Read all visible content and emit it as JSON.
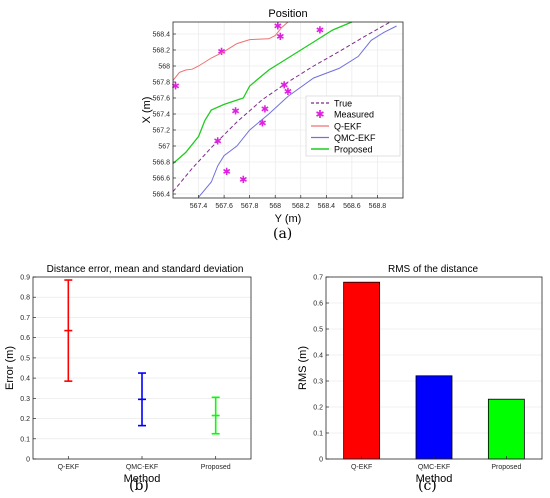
{
  "chart_data": [
    {
      "type": "line",
      "panel_label": "(a)",
      "title": "Position",
      "xlabel": "Y (m)",
      "ylabel": "X (m)",
      "xlim": [
        567.2,
        569.0
      ],
      "ylim": [
        566.35,
        568.55
      ],
      "xticks": [
        567.4,
        567.6,
        567.8,
        568,
        568.2,
        568.4,
        568.6,
        568.8
      ],
      "yticks": [
        566.4,
        566.6,
        566.8,
        567,
        567.2,
        567.4,
        567.6,
        567.8,
        568,
        568.2,
        568.4
      ],
      "legend_position": "lower-right",
      "series": [
        {
          "name": "True",
          "color": "#7b2c86",
          "style": "dashed",
          "x": [
            567.2,
            567.35,
            567.5,
            567.7,
            567.9,
            568.1,
            568.3,
            568.5,
            568.7,
            568.9
          ],
          "y": [
            566.43,
            566.72,
            566.98,
            567.3,
            567.58,
            567.8,
            568.0,
            568.18,
            568.37,
            568.55
          ]
        },
        {
          "name": "Measured",
          "color": "#e020e0",
          "style": "markers",
          "x": [
            567.22,
            567.55,
            567.58,
            567.62,
            567.69,
            567.75,
            567.9,
            567.92,
            568.02,
            568.04,
            568.07,
            568.1,
            568.35
          ],
          "y": [
            567.75,
            567.06,
            568.18,
            566.68,
            567.44,
            566.58,
            567.29,
            567.46,
            568.5,
            568.37,
            567.76,
            567.68,
            568.45
          ]
        },
        {
          "name": "Q-EKF",
          "color": "#f07070",
          "style": "solid",
          "x": [
            567.2,
            567.25,
            567.3,
            567.35,
            567.4,
            567.5,
            567.6,
            567.7,
            567.8,
            567.95,
            568.0,
            568.05,
            568.1
          ],
          "y": [
            567.82,
            567.92,
            567.95,
            567.96,
            568.0,
            568.1,
            568.18,
            568.28,
            568.33,
            568.34,
            568.38,
            568.48,
            568.57
          ]
        },
        {
          "name": "QMC-EKF",
          "color": "#7070e0",
          "style": "solid",
          "x": [
            567.4,
            567.5,
            567.55,
            567.6,
            567.7,
            567.8,
            567.95,
            568.1,
            568.3,
            568.5,
            568.65,
            568.75,
            568.85,
            568.95
          ],
          "y": [
            566.36,
            566.55,
            566.75,
            566.88,
            567.0,
            567.2,
            567.4,
            567.62,
            567.85,
            567.97,
            568.12,
            568.32,
            568.42,
            568.5
          ]
        },
        {
          "name": "Proposed",
          "color": "#20cc20",
          "style": "solid",
          "x": [
            567.2,
            567.3,
            567.4,
            567.45,
            567.5,
            567.6,
            567.75,
            567.8,
            567.95,
            568.1,
            568.3,
            568.45,
            568.6
          ],
          "y": [
            566.78,
            566.92,
            567.12,
            567.32,
            567.45,
            567.52,
            567.6,
            567.75,
            567.95,
            568.1,
            568.3,
            568.45,
            568.55
          ]
        }
      ]
    },
    {
      "type": "errorbar",
      "panel_label": "(b)",
      "title": "Distance error, mean and standard deviation",
      "xlabel": "Method",
      "ylabel": "Error (m)",
      "ylim": [
        0,
        0.9
      ],
      "yticks": [
        0,
        0.1,
        0.2,
        0.3,
        0.4,
        0.5,
        0.6,
        0.7,
        0.8,
        0.9
      ],
      "categories": [
        "Q-EKF",
        "QMC-EKF",
        "Proposed"
      ],
      "mean": [
        0.635,
        0.295,
        0.215
      ],
      "lower": [
        0.385,
        0.165,
        0.125
      ],
      "upper": [
        0.885,
        0.425,
        0.305
      ],
      "colors": [
        "#ff0000",
        "#0000ff",
        "#00ff00"
      ]
    },
    {
      "type": "bar",
      "panel_label": "(c)",
      "title": "RMS of the distance",
      "xlabel": "Method",
      "ylabel": "RMS (m)",
      "ylim": [
        0,
        0.7
      ],
      "yticks": [
        0,
        0.1,
        0.2,
        0.3,
        0.4,
        0.5,
        0.6,
        0.7
      ],
      "categories": [
        "Q-EKF",
        "QMC-EKF",
        "Proposed"
      ],
      "values": [
        0.68,
        0.32,
        0.23
      ],
      "colors": [
        "#ff0000",
        "#0000ff",
        "#00ff00"
      ]
    }
  ]
}
